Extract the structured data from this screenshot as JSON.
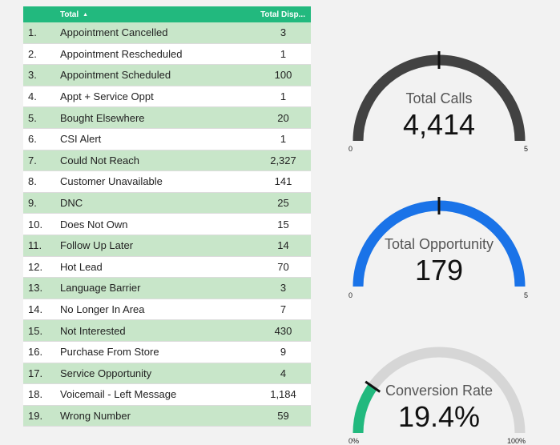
{
  "table": {
    "header": {
      "name": "Total",
      "value": "Total Disp..."
    },
    "rows": [
      {
        "idx": "1.",
        "name": "Appointment Cancelled",
        "value": "3"
      },
      {
        "idx": "2.",
        "name": "Appointment Rescheduled",
        "value": "1"
      },
      {
        "idx": "3.",
        "name": "Appointment Scheduled",
        "value": "100"
      },
      {
        "idx": "4.",
        "name": "Appt + Service Oppt",
        "value": "1"
      },
      {
        "idx": "5.",
        "name": "Bought Elsewhere",
        "value": "20"
      },
      {
        "idx": "6.",
        "name": "CSI Alert",
        "value": "1"
      },
      {
        "idx": "7.",
        "name": "Could Not Reach",
        "value": "2,327"
      },
      {
        "idx": "8.",
        "name": "Customer Unavailable",
        "value": "141"
      },
      {
        "idx": "9.",
        "name": "DNC",
        "value": "25"
      },
      {
        "idx": "10.",
        "name": "Does Not Own",
        "value": "15"
      },
      {
        "idx": "11.",
        "name": "Follow Up Later",
        "value": "14"
      },
      {
        "idx": "12.",
        "name": "Hot Lead",
        "value": "70"
      },
      {
        "idx": "13.",
        "name": "Language Barrier",
        "value": "3"
      },
      {
        "idx": "14.",
        "name": "No Longer In Area",
        "value": "7"
      },
      {
        "idx": "15.",
        "name": "Not Interested",
        "value": "430"
      },
      {
        "idx": "16.",
        "name": "Purchase From Store",
        "value": "9"
      },
      {
        "idx": "17.",
        "name": "Service Opportunity",
        "value": "4"
      },
      {
        "idx": "18.",
        "name": "Voicemail - Left Message",
        "value": "1,184"
      },
      {
        "idx": "19.",
        "name": "Wrong Number",
        "value": "59"
      }
    ]
  },
  "gauges": {
    "calls": {
      "title": "Total Calls",
      "value": "4,414",
      "min": "0",
      "max": "5",
      "fill_fraction": 1.0,
      "color": "#424242",
      "track_color": "#d6d6d6"
    },
    "opportunity": {
      "title": "Total Opportunity",
      "value": "179",
      "min": "0",
      "max": "5",
      "fill_fraction": 1.0,
      "color": "#1a73e8",
      "track_color": "#d6d6d6"
    },
    "conversion": {
      "title": "Conversion Rate",
      "value": "19.4%",
      "min": "0%",
      "max": "100%",
      "fill_fraction": 0.194,
      "color": "#22b97e",
      "track_color": "#d6d6d6"
    }
  },
  "colors": {
    "header_bg": "#22b97e",
    "row_alt": "#c8e6c9"
  }
}
